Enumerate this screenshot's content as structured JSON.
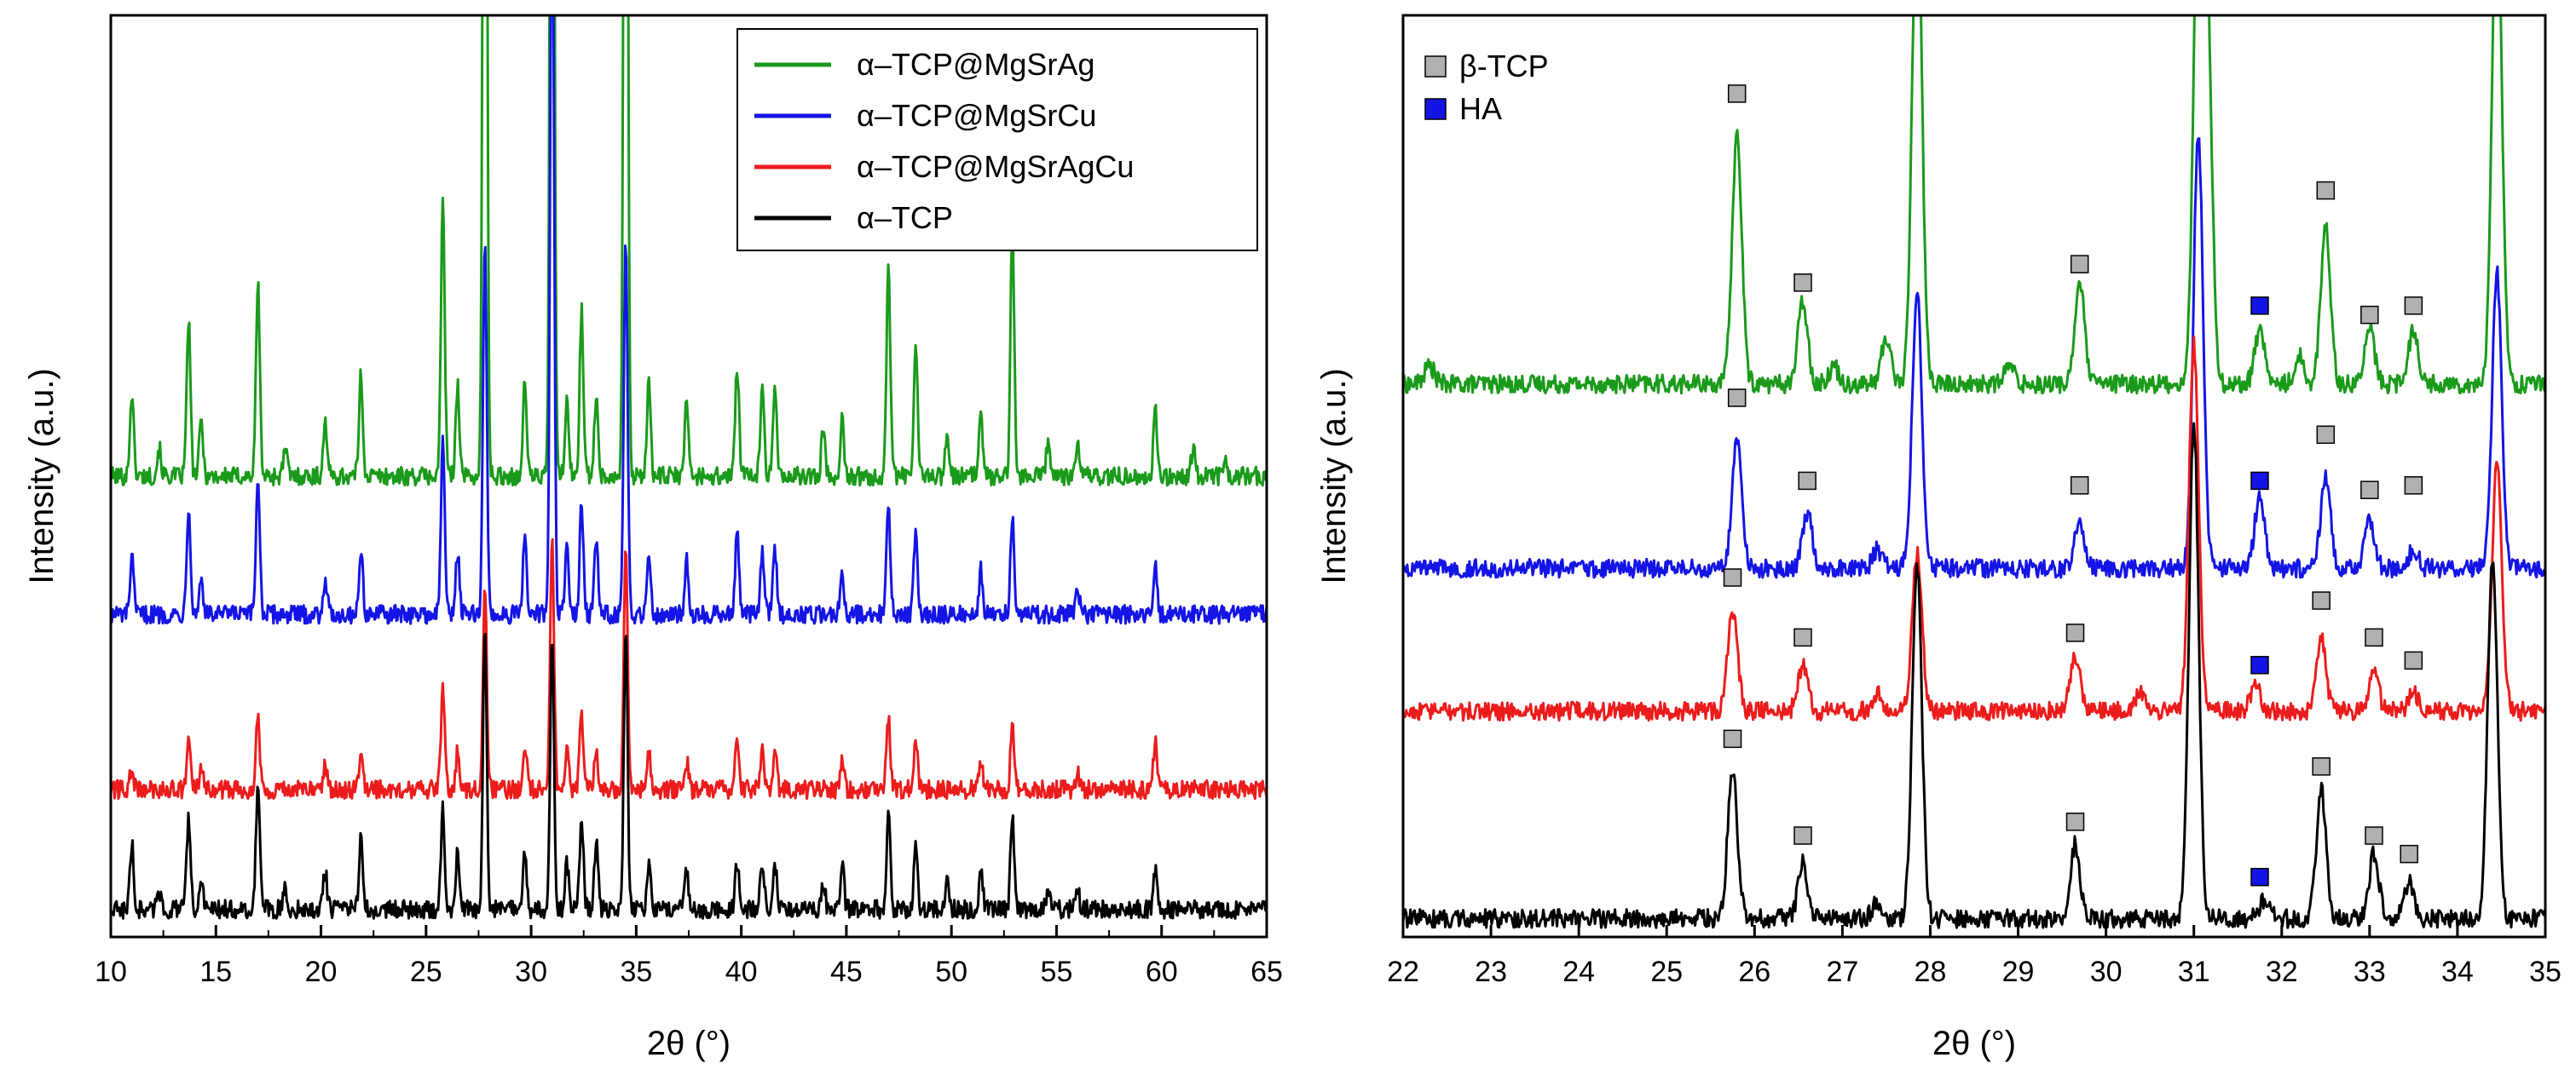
{
  "chart_data": [
    {
      "type": "line",
      "panel": "left",
      "xlabel": "2θ (°)",
      "ylabel": "Intensity (a.u.)",
      "xlim": [
        10,
        65
      ],
      "xticks": [
        10,
        15,
        20,
        25,
        30,
        35,
        40,
        45,
        50,
        55,
        60,
        65
      ],
      "y_ticks_shown": false,
      "legend_position": "top-right",
      "series": [
        {
          "name": "α–TCP@MgSrAg",
          "color": "#1a9a1a",
          "baseline": 0.5,
          "peaks": [
            [
              11.0,
              0.09
            ],
            [
              12.3,
              0.03
            ],
            [
              13.7,
              0.17
            ],
            [
              14.3,
              0.06
            ],
            [
              17.0,
              0.21
            ],
            [
              18.3,
              0.03
            ],
            [
              20.2,
              0.06
            ],
            [
              21.9,
              0.11
            ],
            [
              25.8,
              0.3
            ],
            [
              26.5,
              0.1
            ],
            [
              27.8,
              1.3
            ],
            [
              29.7,
              0.1
            ],
            [
              31.0,
              1.4
            ],
            [
              31.7,
              0.08
            ],
            [
              32.4,
              0.18
            ],
            [
              33.1,
              0.09
            ],
            [
              34.5,
              1.3
            ],
            [
              35.6,
              0.1
            ],
            [
              37.4,
              0.08
            ],
            [
              39.8,
              0.12
            ],
            [
              41.0,
              0.1
            ],
            [
              41.6,
              0.09
            ],
            [
              43.9,
              0.05
            ],
            [
              44.8,
              0.06
            ],
            [
              47.0,
              0.23
            ],
            [
              48.3,
              0.14
            ],
            [
              49.8,
              0.05
            ],
            [
              51.4,
              0.07
            ],
            [
              52.9,
              0.27
            ],
            [
              54.6,
              0.04
            ],
            [
              56.0,
              0.04
            ],
            [
              59.7,
              0.07
            ],
            [
              61.5,
              0.03
            ],
            [
              63.0,
              0.02
            ]
          ]
        },
        {
          "name": "α–TCP@MgSrCu",
          "color": "#1414e6",
          "baseline": 0.35,
          "peaks": [
            [
              11.0,
              0.06
            ],
            [
              13.7,
              0.12
            ],
            [
              14.3,
              0.04
            ],
            [
              17.0,
              0.15
            ],
            [
              20.2,
              0.04
            ],
            [
              21.9,
              0.07
            ],
            [
              25.8,
              0.19
            ],
            [
              26.5,
              0.07
            ],
            [
              27.8,
              0.4
            ],
            [
              29.7,
              0.08
            ],
            [
              31.0,
              0.85
            ],
            [
              31.7,
              0.07
            ],
            [
              32.4,
              0.12
            ],
            [
              33.1,
              0.08
            ],
            [
              34.5,
              0.4
            ],
            [
              35.6,
              0.07
            ],
            [
              37.4,
              0.06
            ],
            [
              39.8,
              0.09
            ],
            [
              41.0,
              0.07
            ],
            [
              41.6,
              0.07
            ],
            [
              44.8,
              0.05
            ],
            [
              47.0,
              0.12
            ],
            [
              48.3,
              0.09
            ],
            [
              51.4,
              0.05
            ],
            [
              52.9,
              0.11
            ],
            [
              56.0,
              0.03
            ],
            [
              59.7,
              0.05
            ]
          ]
        },
        {
          "name": "α–TCP@MgSrAgCu",
          "color": "#ec1c1c",
          "baseline": 0.16,
          "peaks": [
            [
              11.0,
              0.02
            ],
            [
              13.7,
              0.05
            ],
            [
              14.3,
              0.02
            ],
            [
              17.0,
              0.08
            ],
            [
              20.2,
              0.03
            ],
            [
              21.9,
              0.04
            ],
            [
              25.8,
              0.11
            ],
            [
              26.5,
              0.04
            ],
            [
              27.8,
              0.22
            ],
            [
              29.7,
              0.05
            ],
            [
              31.0,
              0.27
            ],
            [
              31.7,
              0.04
            ],
            [
              32.4,
              0.08
            ],
            [
              33.1,
              0.04
            ],
            [
              34.5,
              0.27
            ],
            [
              35.6,
              0.04
            ],
            [
              37.4,
              0.03
            ],
            [
              39.8,
              0.05
            ],
            [
              41.0,
              0.04
            ],
            [
              41.6,
              0.04
            ],
            [
              44.8,
              0.03
            ],
            [
              47.0,
              0.08
            ],
            [
              48.3,
              0.05
            ],
            [
              51.4,
              0.03
            ],
            [
              52.9,
              0.07
            ],
            [
              56.0,
              0.02
            ],
            [
              59.7,
              0.05
            ]
          ]
        },
        {
          "name": "α–TCP",
          "color": "#000000",
          "baseline": 0.03,
          "peaks": [
            [
              11.0,
              0.07
            ],
            [
              12.3,
              0.02
            ],
            [
              13.7,
              0.1
            ],
            [
              14.3,
              0.03
            ],
            [
              17.0,
              0.14
            ],
            [
              18.3,
              0.02
            ],
            [
              20.2,
              0.04
            ],
            [
              21.9,
              0.08
            ],
            [
              25.8,
              0.11
            ],
            [
              26.5,
              0.06
            ],
            [
              27.8,
              0.3
            ],
            [
              29.7,
              0.06
            ],
            [
              31.0,
              0.3
            ],
            [
              31.7,
              0.05
            ],
            [
              32.4,
              0.1
            ],
            [
              33.1,
              0.07
            ],
            [
              34.5,
              0.3
            ],
            [
              35.6,
              0.05
            ],
            [
              37.4,
              0.04
            ],
            [
              39.8,
              0.05
            ],
            [
              41.0,
              0.05
            ],
            [
              41.6,
              0.05
            ],
            [
              43.9,
              0.03
            ],
            [
              44.8,
              0.05
            ],
            [
              47.0,
              0.1
            ],
            [
              48.3,
              0.07
            ],
            [
              49.8,
              0.03
            ],
            [
              51.4,
              0.04
            ],
            [
              52.9,
              0.1
            ],
            [
              54.6,
              0.02
            ],
            [
              56.0,
              0.02
            ],
            [
              59.7,
              0.04
            ]
          ]
        }
      ]
    },
    {
      "type": "line",
      "panel": "right",
      "xlabel": "2θ (°)",
      "ylabel": "Intensity (a.u.)",
      "xlim": [
        22,
        35
      ],
      "xticks": [
        22,
        23,
        24,
        25,
        26,
        27,
        28,
        29,
        30,
        31,
        32,
        33,
        34,
        35
      ],
      "y_ticks_shown": false,
      "legend_position": "top-left",
      "marker_legend": [
        {
          "label": "β-TCP",
          "color": "#b0b0b0"
        },
        {
          "label": "HA",
          "color": "#1414e6"
        }
      ],
      "series": [
        {
          "color": "#1a9a1a",
          "baseline": 0.6,
          "peaks": [
            [
              22.3,
              0.02
            ],
            [
              25.8,
              0.27
            ],
            [
              26.55,
              0.09
            ],
            [
              26.9,
              0.02
            ],
            [
              27.5,
              0.05
            ],
            [
              27.85,
              0.55
            ],
            [
              28.9,
              0.02
            ],
            [
              29.7,
              0.11
            ],
            [
              31.05,
              0.52
            ],
            [
              31.15,
              0.4
            ],
            [
              31.75,
              0.06
            ],
            [
              32.2,
              0.03
            ],
            [
              32.5,
              0.17
            ],
            [
              33.0,
              0.06
            ],
            [
              33.5,
              0.06
            ],
            [
              34.45,
              0.55
            ]
          ],
          "markers": [
            {
              "x": 25.8,
              "type": "β-TCP",
              "y": 0.915
            },
            {
              "x": 26.55,
              "type": "β-TCP",
              "y": 0.71
            },
            {
              "x": 29.7,
              "type": "β-TCP",
              "y": 0.73
            },
            {
              "x": 31.75,
              "type": "HA",
              "y": 0.685
            },
            {
              "x": 32.5,
              "type": "β-TCP",
              "y": 0.81
            },
            {
              "x": 33.0,
              "type": "β-TCP",
              "y": 0.675
            },
            {
              "x": 33.5,
              "type": "β-TCP",
              "y": 0.685
            }
          ]
        },
        {
          "color": "#1414e6",
          "baseline": 0.4,
          "peaks": [
            [
              25.8,
              0.14
            ],
            [
              26.6,
              0.06
            ],
            [
              27.4,
              0.02
            ],
            [
              27.85,
              0.3
            ],
            [
              29.7,
              0.05
            ],
            [
              31.05,
              0.47
            ],
            [
              31.75,
              0.08
            ],
            [
              32.5,
              0.1
            ],
            [
              33.0,
              0.05
            ],
            [
              33.5,
              0.02
            ],
            [
              34.45,
              0.32
            ]
          ],
          "markers": [
            {
              "x": 25.8,
              "type": "β-TCP",
              "y": 0.585
            },
            {
              "x": 26.6,
              "type": "β-TCP",
              "y": 0.495
            },
            {
              "x": 29.7,
              "type": "β-TCP",
              "y": 0.49
            },
            {
              "x": 31.75,
              "type": "HA",
              "y": 0.495
            },
            {
              "x": 32.5,
              "type": "β-TCP",
              "y": 0.545
            },
            {
              "x": 33.0,
              "type": "β-TCP",
              "y": 0.485
            },
            {
              "x": 33.5,
              "type": "β-TCP",
              "y": 0.49
            }
          ]
        },
        {
          "color": "#ec1c1c",
          "baseline": 0.245,
          "peaks": [
            [
              25.75,
              0.11
            ],
            [
              26.55,
              0.05
            ],
            [
              27.4,
              0.02
            ],
            [
              27.85,
              0.17
            ],
            [
              29.65,
              0.06
            ],
            [
              30.4,
              0.02
            ],
            [
              31.0,
              0.4
            ],
            [
              31.7,
              0.03
            ],
            [
              32.45,
              0.08
            ],
            [
              33.05,
              0.04
            ],
            [
              33.5,
              0.02
            ],
            [
              34.45,
              0.27
            ]
          ],
          "markers": [
            {
              "x": 25.75,
              "type": "β-TCP",
              "y": 0.39
            },
            {
              "x": 26.55,
              "type": "β-TCP",
              "y": 0.325
            },
            {
              "x": 29.65,
              "type": "β-TCP",
              "y": 0.33
            },
            {
              "x": 31.75,
              "type": "HA",
              "y": 0.295
            },
            {
              "x": 32.45,
              "type": "β-TCP",
              "y": 0.365
            },
            {
              "x": 33.05,
              "type": "β-TCP",
              "y": 0.325
            },
            {
              "x": 33.5,
              "type": "β-TCP",
              "y": 0.3
            }
          ]
        },
        {
          "color": "#000000",
          "baseline": 0.02,
          "peaks": [
            [
              25.75,
              0.16
            ],
            [
              26.55,
              0.06
            ],
            [
              27.4,
              0.02
            ],
            [
              27.85,
              0.38
            ],
            [
              29.65,
              0.08
            ],
            [
              31.0,
              0.54
            ],
            [
              31.8,
              0.02
            ],
            [
              32.45,
              0.14
            ],
            [
              33.05,
              0.07
            ],
            [
              33.45,
              0.04
            ],
            [
              34.4,
              0.39
            ]
          ],
          "markers": [
            {
              "x": 25.75,
              "type": "β-TCP",
              "y": 0.215
            },
            {
              "x": 26.55,
              "type": "β-TCP",
              "y": 0.11
            },
            {
              "x": 29.65,
              "type": "β-TCP",
              "y": 0.125
            },
            {
              "x": 31.75,
              "type": "HA",
              "y": 0.065
            },
            {
              "x": 32.45,
              "type": "β-TCP",
              "y": 0.185
            },
            {
              "x": 33.05,
              "type": "β-TCP",
              "y": 0.11
            },
            {
              "x": 33.45,
              "type": "β-TCP",
              "y": 0.09
            }
          ]
        }
      ]
    }
  ]
}
